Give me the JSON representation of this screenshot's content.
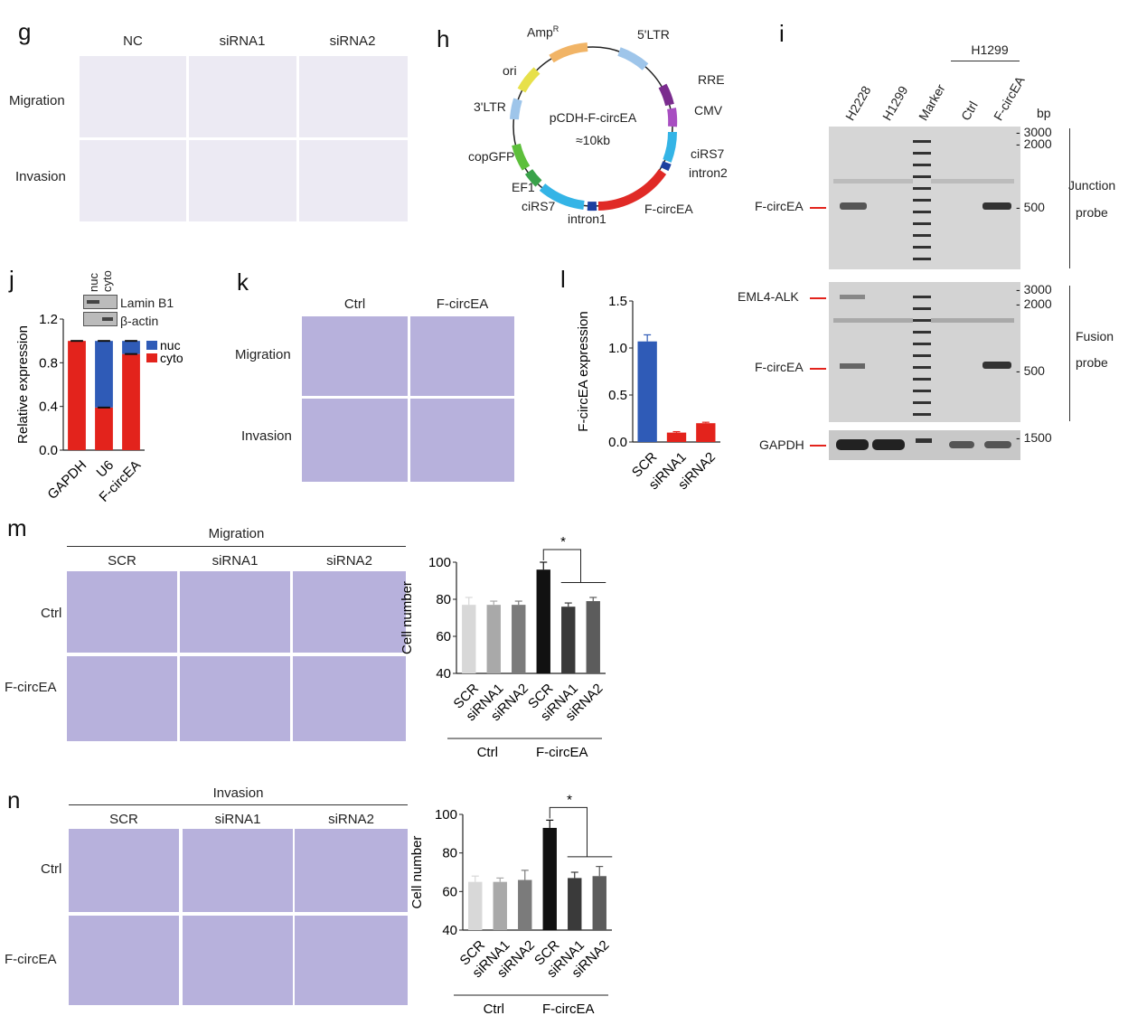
{
  "panel_letters": {
    "g": "g",
    "h": "h",
    "i": "i",
    "j": "j",
    "k": "k",
    "l": "l",
    "m": "m",
    "n": "n"
  },
  "panel_g": {
    "cols": [
      "NC",
      "siRNA1",
      "siRNA2"
    ],
    "rows": [
      "Migration",
      "Invasion"
    ]
  },
  "panel_h": {
    "center_name": "pCDH-F-circEA",
    "center_size": "≈10kb",
    "labels": {
      "amp": "Amp",
      "amp_sup": "R",
      "ltr5": "5'LTR",
      "rre": "RRE",
      "cmv": "CMV",
      "cirs7_a": "ciRS7",
      "intron2": "intron2",
      "fcirc": "F-circEA",
      "intron1": "intron1",
      "cirs7_b": "ciRS7",
      "ef1": "EF1",
      "copgfp": "copGFP",
      "ltr3": "3'LTR",
      "ori": "ori"
    }
  },
  "panel_i": {
    "group_label": "H1299",
    "lanes": [
      "H2228",
      "H1299",
      "Marker",
      "Ctrl",
      "F-circEA"
    ],
    "bp_label": "bp",
    "top_ladder": [
      "3000",
      "2000",
      "500"
    ],
    "mid_ladder": [
      "3000",
      "2000",
      "500"
    ],
    "bottom_ladder": [
      "1500"
    ],
    "top_band_label": "F-circEA",
    "top_probe_1": "Junction",
    "top_probe_2": "probe",
    "mid_band_1": "EML4-ALK",
    "mid_band_2": "F-circEA",
    "mid_probe_1": "Fusion",
    "mid_probe_2": "probe",
    "bottom_band": "GAPDH"
  },
  "panel_j": {
    "blot_cols": [
      "nuc",
      "cyto"
    ],
    "blot_rows": [
      "Lamin B1",
      "β-actin"
    ],
    "legend": [
      "nuc",
      "cyto"
    ]
  },
  "panel_k": {
    "cols": [
      "Ctrl",
      "F-circEA"
    ],
    "rows": [
      "Migration",
      "Invasion"
    ]
  },
  "panel_m": {
    "title": "Migration",
    "cols": [
      "SCR",
      "siRNA1",
      "siRNA2"
    ],
    "rows": [
      "Ctrl",
      "F-circEA"
    ]
  },
  "panel_n": {
    "title": "Invasion",
    "cols": [
      "SCR",
      "siRNA1",
      "siRNA2"
    ],
    "rows": [
      "Ctrl",
      "F-circEA"
    ]
  },
  "chart_data": [
    {
      "id": "j",
      "type": "bar",
      "stacked": true,
      "categories": [
        "GAPDH",
        "U6",
        "F-circEA"
      ],
      "series": [
        {
          "name": "nuc",
          "values": [
            0.0,
            0.61,
            0.12
          ],
          "color": "#2f5bb7"
        },
        {
          "name": "cyto",
          "values": [
            1.0,
            0.39,
            0.88
          ],
          "color": "#e3231c"
        }
      ],
      "ylabel": "Relative expression",
      "ylim": [
        0,
        1.2
      ],
      "yticks": [
        "0.0",
        "0.4",
        "0.8",
        "1.2"
      ],
      "legend": "top-right"
    },
    {
      "id": "l",
      "type": "bar",
      "categories": [
        "SCR",
        "siRNA1",
        "siRNA2"
      ],
      "values": [
        1.07,
        0.1,
        0.2
      ],
      "errors": [
        0.07,
        0.01,
        0.01
      ],
      "colors": [
        "#2f5bb7",
        "#e3231c",
        "#e3231c"
      ],
      "ylabel": "F-circEA expression",
      "ylim": [
        0,
        1.5
      ],
      "yticks": [
        "0.0",
        "0.5",
        "1.0",
        "1.5"
      ]
    },
    {
      "id": "m",
      "type": "bar",
      "categories": [
        "SCR",
        "siRNA1",
        "siRNA2",
        "SCR",
        "siRNA1",
        "siRNA2"
      ],
      "values": [
        77,
        77,
        77,
        96,
        76,
        79
      ],
      "errors": [
        4,
        2,
        2,
        4,
        2,
        2
      ],
      "colors": [
        "#d8d8d8",
        "#a9a9a9",
        "#7b7b7b",
        "#111111",
        "#3a3a3a",
        "#5c5c5c"
      ],
      "groups": [
        "Ctrl",
        "F-circEA"
      ],
      "ylabel": "Cell number",
      "ylim": [
        40,
        100
      ],
      "yticks": [
        "40",
        "60",
        "80",
        "100"
      ],
      "annotation": "*"
    },
    {
      "id": "n",
      "type": "bar",
      "categories": [
        "SCR",
        "siRNA1",
        "siRNA2",
        "SCR",
        "siRNA1",
        "siRNA2"
      ],
      "values": [
        65,
        65,
        66,
        93,
        67,
        68
      ],
      "errors": [
        3,
        2,
        5,
        4,
        3,
        5
      ],
      "colors": [
        "#d8d8d8",
        "#a9a9a9",
        "#7b7b7b",
        "#111111",
        "#3a3a3a",
        "#5c5c5c"
      ],
      "groups": [
        "Ctrl",
        "F-circEA"
      ],
      "ylabel": "Cell number",
      "ylim": [
        40,
        100
      ],
      "yticks": [
        "40",
        "60",
        "80",
        "100"
      ],
      "annotation": "*"
    }
  ]
}
